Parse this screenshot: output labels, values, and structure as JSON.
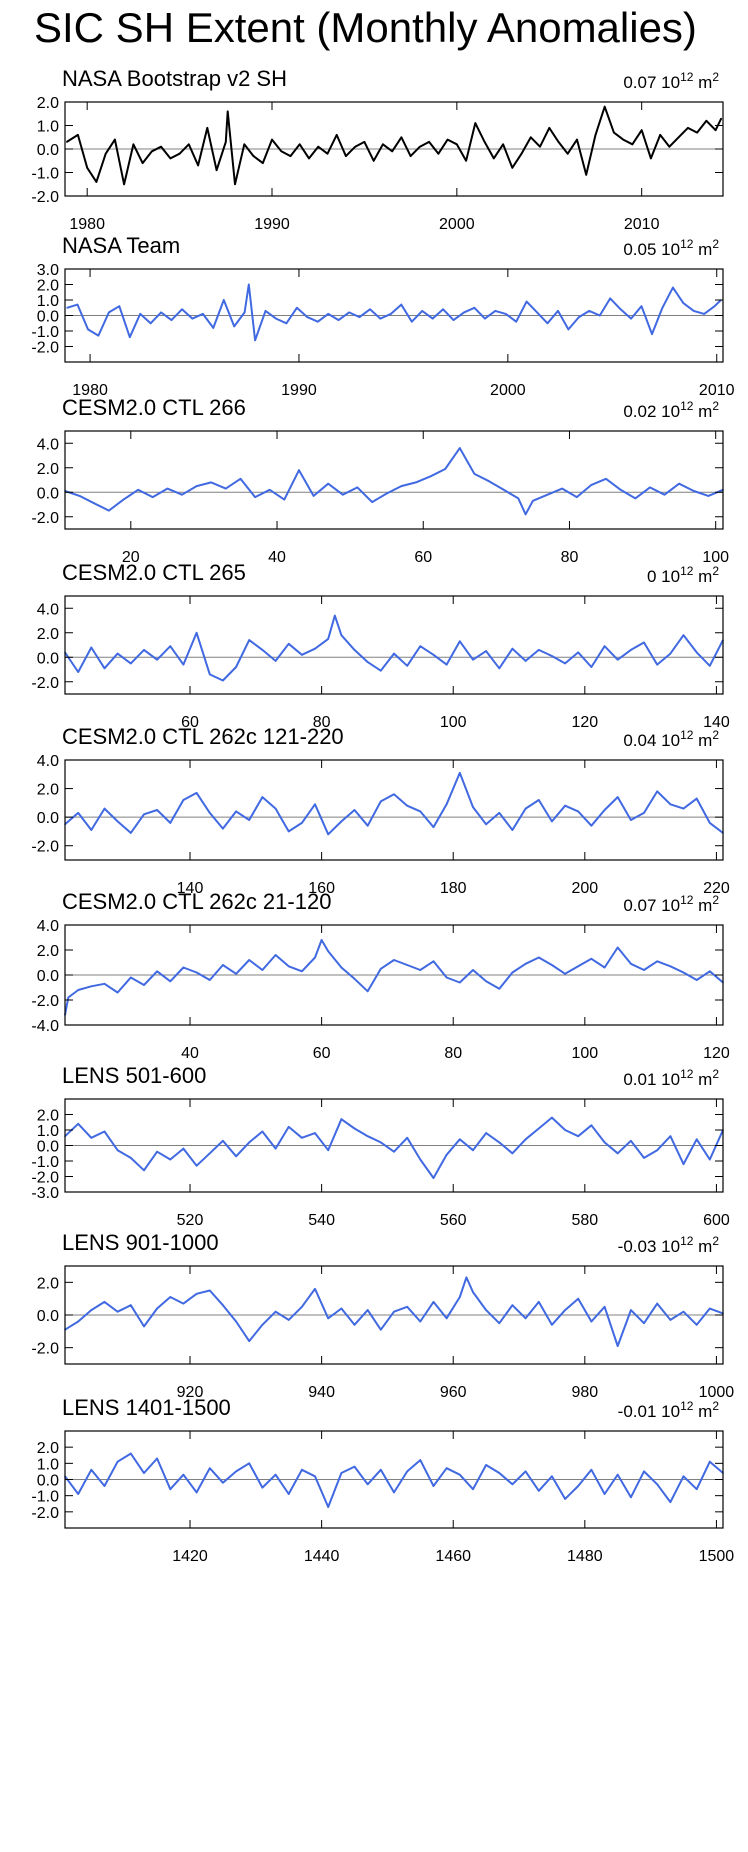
{
  "title": "SIC SH Extent (Monthly Anomalies)",
  "unit_power": "12",
  "unit_base": "10",
  "unit_m": "m",
  "unit_sq": "2",
  "colors": {
    "obs": "#000000",
    "model": "#4169e1",
    "axis": "#000000",
    "zero": "#808080"
  },
  "chart_data": [
    {
      "type": "line",
      "title": "NASA Bootstrap v2 SH",
      "stat": "0.07",
      "color": "#000000",
      "xlim": [
        1978.8,
        2014.4
      ],
      "ylim": [
        -2.0,
        2.0
      ],
      "yticks": [
        2.0,
        1.0,
        0.0,
        -1.0,
        -2.0
      ],
      "ytick_labels": [
        "2.0",
        "1.0",
        "0.0",
        "-1.0",
        "-2.0"
      ],
      "xticks": [
        1980,
        1990,
        2000,
        2010
      ],
      "xtick_labels": [
        "1980",
        "1990",
        "2000",
        "2010"
      ],
      "x": [
        1978.9,
        1979.5,
        1980.0,
        1980.5,
        1981.0,
        1981.5,
        1982.0,
        1982.5,
        1983.0,
        1983.5,
        1984.0,
        1984.5,
        1985.0,
        1985.5,
        1986.0,
        1986.5,
        1987.0,
        1987.5,
        1987.6,
        1988.0,
        1988.5,
        1989.0,
        1989.5,
        1990.0,
        1990.5,
        1991.0,
        1991.5,
        1992.0,
        1992.5,
        1993.0,
        1993.5,
        1994.0,
        1994.5,
        1995.0,
        1995.5,
        1996.0,
        1996.5,
        1997.0,
        1997.5,
        1998.0,
        1998.5,
        1999.0,
        1999.5,
        2000.0,
        2000.5,
        2001.0,
        2001.5,
        2002.0,
        2002.5,
        2003.0,
        2003.5,
        2004.0,
        2004.5,
        2005.0,
        2005.5,
        2006.0,
        2006.5,
        2007.0,
        2007.5,
        2008.0,
        2008.5,
        2009.0,
        2009.5,
        2010.0,
        2010.5,
        2011.0,
        2011.5,
        2012.0,
        2012.5,
        2013.0,
        2013.5,
        2014.0,
        2014.3
      ],
      "y": [
        0.3,
        0.6,
        -0.8,
        -1.4,
        -0.2,
        0.4,
        -1.5,
        0.2,
        -0.6,
        -0.1,
        0.1,
        -0.4,
        -0.2,
        0.2,
        -0.7,
        0.9,
        -0.9,
        0.3,
        1.6,
        -1.5,
        0.2,
        -0.3,
        -0.6,
        0.4,
        -0.1,
        -0.3,
        0.2,
        -0.4,
        0.1,
        -0.2,
        0.6,
        -0.3,
        0.1,
        0.3,
        -0.5,
        0.2,
        -0.1,
        0.5,
        -0.3,
        0.1,
        0.3,
        -0.2,
        0.4,
        0.2,
        -0.5,
        1.1,
        0.3,
        -0.4,
        0.2,
        -0.8,
        -0.2,
        0.5,
        0.1,
        0.9,
        0.3,
        -0.2,
        0.4,
        -1.1,
        0.6,
        1.8,
        0.7,
        0.4,
        0.2,
        0.8,
        -0.4,
        0.6,
        0.1,
        0.5,
        0.9,
        0.7,
        1.2,
        0.8,
        1.3
      ]
    },
    {
      "type": "line",
      "title": "NASA Team",
      "stat": "0.05",
      "color": "#4169e1",
      "xlim": [
        1978.8,
        2010.3
      ],
      "ylim": [
        -3.0,
        3.0
      ],
      "yticks": [
        3.0,
        2.0,
        1.0,
        0.0,
        -1.0,
        -2.0
      ],
      "ytick_labels": [
        "3.0",
        "2.0",
        "1.0",
        "0.0",
        "-1.0",
        "-2.0"
      ],
      "xticks": [
        1980,
        1990,
        2000,
        2010
      ],
      "xtick_labels": [
        "1980",
        "1990",
        "2000",
        "2010"
      ],
      "x": [
        1978.9,
        1979.4,
        1979.9,
        1980.4,
        1980.9,
        1981.4,
        1981.9,
        1982.4,
        1982.9,
        1983.4,
        1983.9,
        1984.4,
        1984.9,
        1985.4,
        1985.9,
        1986.4,
        1986.9,
        1987.4,
        1987.6,
        1987.9,
        1988.4,
        1988.9,
        1989.4,
        1989.9,
        1990.4,
        1990.9,
        1991.4,
        1991.9,
        1992.4,
        1992.9,
        1993.4,
        1993.9,
        1994.4,
        1994.9,
        1995.4,
        1995.9,
        1996.4,
        1996.9,
        1997.4,
        1997.9,
        1998.4,
        1998.9,
        1999.4,
        1999.9,
        2000.4,
        2000.9,
        2001.4,
        2001.9,
        2002.4,
        2002.9,
        2003.4,
        2003.9,
        2004.4,
        2004.9,
        2005.4,
        2005.9,
        2006.4,
        2006.9,
        2007.4,
        2007.9,
        2008.4,
        2008.9,
        2009.4,
        2009.9,
        2010.2
      ],
      "y": [
        0.5,
        0.7,
        -0.9,
        -1.3,
        0.2,
        0.6,
        -1.4,
        0.1,
        -0.5,
        0.2,
        -0.3,
        0.4,
        -0.2,
        0.1,
        -0.8,
        1.0,
        -0.7,
        0.2,
        2.0,
        -1.6,
        0.3,
        -0.2,
        -0.5,
        0.5,
        -0.1,
        -0.4,
        0.1,
        -0.3,
        0.2,
        -0.1,
        0.4,
        -0.2,
        0.1,
        0.7,
        -0.4,
        0.3,
        -0.2,
        0.4,
        -0.3,
        0.2,
        0.5,
        -0.2,
        0.3,
        0.1,
        -0.4,
        0.9,
        0.2,
        -0.5,
        0.3,
        -0.9,
        -0.1,
        0.3,
        0.0,
        1.1,
        0.4,
        -0.2,
        0.6,
        -1.2,
        0.5,
        1.8,
        0.8,
        0.3,
        0.1,
        0.6,
        1.0
      ]
    },
    {
      "type": "line",
      "title": "CESM2.0 CTL 266",
      "stat": "0.02",
      "color": "#4169e1",
      "xlim": [
        11,
        101
      ],
      "ylim": [
        -3.0,
        5.0
      ],
      "yticks": [
        4.0,
        2.0,
        0.0,
        -2.0
      ],
      "ytick_labels": [
        "4.0",
        "2.0",
        "0.0",
        "-2.0"
      ],
      "xticks": [
        20,
        40,
        60,
        80,
        100
      ],
      "xtick_labels": [
        "20",
        "40",
        "60",
        "80",
        "100"
      ],
      "x": [
        11,
        13,
        15,
        17,
        19,
        21,
        23,
        25,
        27,
        29,
        31,
        33,
        35,
        37,
        39,
        41,
        43,
        45,
        47,
        49,
        51,
        53,
        55,
        57,
        59,
        61,
        63,
        65,
        67,
        69,
        71,
        73,
        74,
        75,
        77,
        79,
        81,
        83,
        85,
        87,
        89,
        91,
        93,
        95,
        97,
        99,
        101
      ],
      "y": [
        0.1,
        -0.3,
        -0.9,
        -1.5,
        -0.6,
        0.2,
        -0.4,
        0.3,
        -0.2,
        0.5,
        0.8,
        0.3,
        1.1,
        -0.4,
        0.2,
        -0.6,
        1.8,
        -0.3,
        0.7,
        -0.2,
        0.4,
        -0.8,
        -0.1,
        0.5,
        0.8,
        1.3,
        1.9,
        3.6,
        1.5,
        0.9,
        0.2,
        -0.5,
        -1.8,
        -0.7,
        -0.2,
        0.3,
        -0.4,
        0.6,
        1.1,
        0.2,
        -0.5,
        0.4,
        -0.2,
        0.7,
        0.1,
        -0.3,
        0.2
      ]
    },
    {
      "type": "line",
      "title": "CESM2.0 CTL 265",
      "stat": "0",
      "color": "#4169e1",
      "xlim": [
        41,
        141
      ],
      "ylim": [
        -3.0,
        5.0
      ],
      "yticks": [
        4.0,
        2.0,
        0.0,
        -2.0
      ],
      "ytick_labels": [
        "4.0",
        "2.0",
        "0.0",
        "-2.0"
      ],
      "xticks": [
        60,
        80,
        100,
        120,
        140
      ],
      "xtick_labels": [
        "60",
        "80",
        "100",
        "120",
        "140"
      ],
      "x": [
        41,
        43,
        45,
        47,
        49,
        51,
        53,
        55,
        57,
        59,
        61,
        63,
        65,
        67,
        69,
        71,
        73,
        75,
        77,
        79,
        81,
        82,
        83,
        85,
        87,
        89,
        91,
        93,
        95,
        97,
        99,
        101,
        103,
        105,
        107,
        109,
        111,
        113,
        115,
        117,
        119,
        121,
        123,
        125,
        127,
        129,
        131,
        133,
        135,
        137,
        139,
        141
      ],
      "y": [
        0.4,
        -1.2,
        0.8,
        -0.9,
        0.3,
        -0.5,
        0.6,
        -0.2,
        0.9,
        -0.6,
        2.0,
        -1.4,
        -1.9,
        -0.8,
        1.4,
        0.6,
        -0.3,
        1.1,
        0.2,
        0.7,
        1.5,
        3.4,
        1.8,
        0.6,
        -0.4,
        -1.1,
        0.3,
        -0.7,
        0.9,
        0.2,
        -0.6,
        1.3,
        -0.2,
        0.5,
        -0.9,
        0.7,
        -0.3,
        0.6,
        0.1,
        -0.5,
        0.4,
        -0.8,
        0.9,
        -0.2,
        0.6,
        1.2,
        -0.6,
        0.3,
        1.8,
        0.4,
        -0.7,
        1.4
      ]
    },
    {
      "type": "line",
      "title": "CESM2.0 CTL 262c 121-220",
      "stat": "0.04",
      "color": "#4169e1",
      "xlim": [
        121,
        221
      ],
      "ylim": [
        -3.0,
        4.0
      ],
      "yticks": [
        4.0,
        2.0,
        0.0,
        -2.0
      ],
      "ytick_labels": [
        "4.0",
        "2.0",
        "0.0",
        "-2.0"
      ],
      "xticks": [
        140,
        160,
        180,
        200,
        220
      ],
      "xtick_labels": [
        "140",
        "160",
        "180",
        "200",
        "220"
      ],
      "x": [
        121,
        123,
        125,
        127,
        129,
        131,
        133,
        135,
        137,
        139,
        141,
        143,
        145,
        147,
        149,
        151,
        153,
        155,
        157,
        159,
        161,
        163,
        165,
        167,
        169,
        171,
        173,
        175,
        177,
        179,
        181,
        183,
        185,
        187,
        189,
        191,
        193,
        195,
        197,
        199,
        201,
        203,
        205,
        207,
        209,
        211,
        213,
        215,
        217,
        219,
        221
      ],
      "y": [
        -0.5,
        0.3,
        -0.9,
        0.6,
        -0.3,
        -1.1,
        0.2,
        0.5,
        -0.4,
        1.2,
        1.7,
        0.3,
        -0.8,
        0.4,
        -0.2,
        1.4,
        0.6,
        -1.0,
        -0.4,
        0.9,
        -1.2,
        -0.3,
        0.5,
        -0.6,
        1.1,
        1.6,
        0.8,
        0.4,
        -0.7,
        0.9,
        3.1,
        0.7,
        -0.5,
        0.3,
        -0.9,
        0.6,
        1.2,
        -0.3,
        0.8,
        0.4,
        -0.6,
        0.5,
        1.4,
        -0.2,
        0.3,
        1.8,
        0.9,
        0.6,
        1.3,
        -0.4,
        -1.1
      ]
    },
    {
      "type": "line",
      "title": "CESM2.0 CTL 262c 21-120",
      "stat": "0.07",
      "color": "#4169e1",
      "xlim": [
        21,
        121
      ],
      "ylim": [
        -4.0,
        4.0
      ],
      "yticks": [
        4.0,
        2.0,
        0.0,
        -2.0,
        -4.0
      ],
      "ytick_labels": [
        "4.0",
        "2.0",
        "0.0",
        "-2.0",
        "-4.0"
      ],
      "xticks": [
        40,
        60,
        80,
        100,
        120
      ],
      "xtick_labels": [
        "40",
        "60",
        "80",
        "100",
        "120"
      ],
      "x": [
        21,
        21.5,
        23,
        25,
        27,
        29,
        31,
        33,
        35,
        37,
        39,
        41,
        43,
        45,
        47,
        49,
        51,
        53,
        55,
        57,
        59,
        60,
        61,
        63,
        65,
        67,
        69,
        71,
        73,
        75,
        77,
        79,
        81,
        83,
        85,
        87,
        89,
        91,
        93,
        95,
        97,
        99,
        101,
        103,
        105,
        107,
        109,
        111,
        113,
        115,
        117,
        119,
        121
      ],
      "y": [
        -3.2,
        -1.8,
        -1.2,
        -0.9,
        -0.7,
        -1.4,
        -0.2,
        -0.8,
        0.3,
        -0.5,
        0.6,
        0.2,
        -0.4,
        0.8,
        0.1,
        1.2,
        0.4,
        1.6,
        0.7,
        0.3,
        1.4,
        2.8,
        1.9,
        0.6,
        -0.3,
        -1.3,
        0.5,
        1.2,
        0.8,
        0.4,
        1.1,
        -0.2,
        -0.6,
        0.4,
        -0.5,
        -1.1,
        0.2,
        0.9,
        1.4,
        0.8,
        0.1,
        0.7,
        1.3,
        0.6,
        2.2,
        0.9,
        0.4,
        1.1,
        0.7,
        0.2,
        -0.4,
        0.3,
        -0.6
      ]
    },
    {
      "type": "line",
      "title": "LENS 501-600",
      "stat": "0.01",
      "color": "#4169e1",
      "xlim": [
        501,
        601
      ],
      "ylim": [
        -3.0,
        3.0
      ],
      "yticks": [
        2.0,
        1.0,
        0.0,
        -1.0,
        -2.0,
        -3.0
      ],
      "ytick_labels": [
        "2.0",
        "1.0",
        "0.0",
        "-1.0",
        "-2.0",
        "-3.0"
      ],
      "xticks": [
        520,
        540,
        560,
        580,
        600
      ],
      "xtick_labels": [
        "520",
        "540",
        "560",
        "580",
        "600"
      ],
      "x": [
        501,
        503,
        505,
        507,
        509,
        511,
        513,
        515,
        517,
        519,
        521,
        523,
        525,
        527,
        529,
        531,
        533,
        535,
        537,
        539,
        541,
        543,
        545,
        547,
        549,
        551,
        553,
        555,
        557,
        559,
        561,
        563,
        565,
        567,
        569,
        571,
        573,
        575,
        577,
        579,
        581,
        583,
        585,
        587,
        589,
        591,
        593,
        595,
        597,
        599,
        601
      ],
      "y": [
        0.6,
        1.4,
        0.5,
        0.9,
        -0.3,
        -0.8,
        -1.6,
        -0.4,
        -0.9,
        -0.2,
        -1.3,
        -0.5,
        0.3,
        -0.7,
        0.2,
        0.9,
        -0.2,
        1.2,
        0.5,
        0.8,
        -0.3,
        1.7,
        1.1,
        0.6,
        0.2,
        -0.4,
        0.5,
        -0.9,
        -2.1,
        -0.6,
        0.4,
        -0.3,
        0.8,
        0.2,
        -0.5,
        0.4,
        1.1,
        1.8,
        1.0,
        0.6,
        1.3,
        0.2,
        -0.5,
        0.3,
        -0.8,
        -0.3,
        0.6,
        -1.2,
        0.4,
        -0.9,
        1.0
      ]
    },
    {
      "type": "line",
      "title": "LENS 901-1000",
      "stat": "-0.03",
      "color": "#4169e1",
      "xlim": [
        901,
        1001
      ],
      "ylim": [
        -3.0,
        3.0
      ],
      "yticks": [
        2.0,
        0.0,
        -2.0
      ],
      "ytick_labels": [
        "2.0",
        "0.0",
        "-2.0"
      ],
      "xticks": [
        920,
        940,
        960,
        980,
        1000
      ],
      "xtick_labels": [
        "920",
        "940",
        "960",
        "980",
        "1000"
      ],
      "x": [
        901,
        903,
        905,
        907,
        909,
        911,
        913,
        915,
        917,
        919,
        921,
        923,
        925,
        927,
        929,
        931,
        933,
        935,
        937,
        939,
        941,
        943,
        945,
        947,
        949,
        951,
        953,
        955,
        957,
        959,
        961,
        962,
        963,
        965,
        967,
        969,
        971,
        973,
        975,
        977,
        979,
        981,
        983,
        985,
        987,
        989,
        991,
        993,
        995,
        997,
        999,
        1001
      ],
      "y": [
        -0.9,
        -0.4,
        0.3,
        0.8,
        0.2,
        0.6,
        -0.7,
        0.4,
        1.1,
        0.7,
        1.3,
        1.5,
        0.6,
        -0.4,
        -1.6,
        -0.6,
        0.2,
        -0.3,
        0.5,
        1.6,
        -0.2,
        0.4,
        -0.6,
        0.3,
        -0.9,
        0.2,
        0.5,
        -0.4,
        0.8,
        -0.2,
        1.1,
        2.3,
        1.4,
        0.3,
        -0.5,
        0.6,
        -0.2,
        0.8,
        -0.6,
        0.3,
        1.0,
        -0.4,
        0.5,
        -1.9,
        0.3,
        -0.5,
        0.7,
        -0.3,
        0.2,
        -0.6,
        0.4,
        0.1
      ]
    },
    {
      "type": "line",
      "title": "LENS 1401-1500",
      "stat": "-0.01",
      "color": "#4169e1",
      "xlim": [
        1401,
        1501
      ],
      "ylim": [
        -3.0,
        3.0
      ],
      "yticks": [
        2.0,
        1.0,
        0.0,
        -1.0,
        -2.0
      ],
      "ytick_labels": [
        "2.0",
        "1.0",
        "0.0",
        "-1.0",
        "-2.0"
      ],
      "xticks": [
        1420,
        1440,
        1460,
        1480,
        1500
      ],
      "xtick_labels": [
        "1420",
        "1440",
        "1460",
        "1480",
        "1500"
      ],
      "x": [
        1401,
        1403,
        1405,
        1407,
        1409,
        1411,
        1413,
        1415,
        1417,
        1419,
        1421,
        1423,
        1425,
        1427,
        1429,
        1431,
        1433,
        1435,
        1437,
        1439,
        1441,
        1443,
        1445,
        1447,
        1449,
        1451,
        1453,
        1455,
        1457,
        1459,
        1461,
        1463,
        1465,
        1467,
        1469,
        1471,
        1473,
        1475,
        1477,
        1479,
        1481,
        1483,
        1485,
        1487,
        1489,
        1491,
        1493,
        1495,
        1497,
        1499,
        1501
      ],
      "y": [
        0.2,
        -0.9,
        0.6,
        -0.4,
        1.1,
        1.6,
        0.4,
        1.3,
        -0.6,
        0.3,
        -0.8,
        0.7,
        -0.2,
        0.5,
        1.0,
        -0.5,
        0.3,
        -0.9,
        0.6,
        0.2,
        -1.7,
        0.4,
        0.8,
        -0.3,
        0.6,
        -0.8,
        0.5,
        1.2,
        -0.4,
        0.7,
        0.3,
        -0.6,
        0.9,
        0.4,
        -0.3,
        0.5,
        -0.7,
        0.2,
        -1.2,
        -0.4,
        0.6,
        -0.9,
        0.3,
        -1.1,
        0.5,
        -0.3,
        -1.4,
        0.2,
        -0.6,
        1.1,
        0.4
      ]
    }
  ]
}
